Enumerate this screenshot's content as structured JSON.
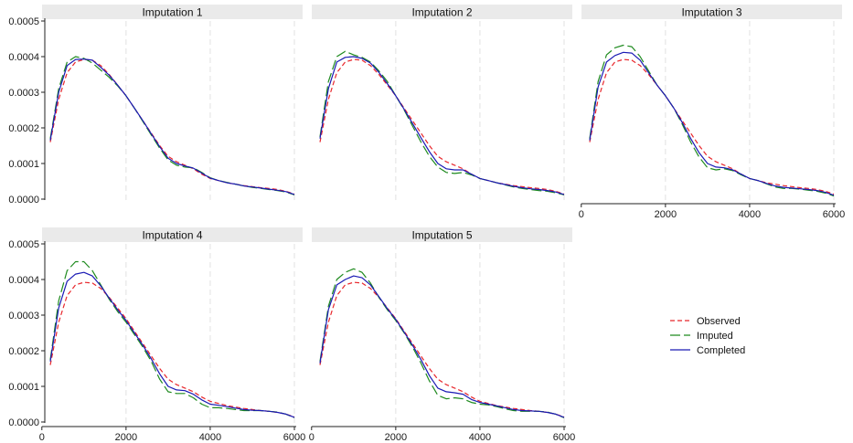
{
  "chart_data": {
    "type": "line",
    "xlim": [
      200,
      6000
    ],
    "ylim": [
      0,
      0.0005
    ],
    "x_ticks": [
      {
        "value": 0,
        "label": "0"
      },
      {
        "value": 2000,
        "label": "2000"
      },
      {
        "value": 4000,
        "label": "4000"
      },
      {
        "value": 6000,
        "label": "6000"
      }
    ],
    "y_ticks": [
      {
        "value": 0,
        "label": "0.0000"
      },
      {
        "value": 0.0001,
        "label": "0.0001"
      },
      {
        "value": 0.0002,
        "label": "0.0002"
      },
      {
        "value": 0.0003,
        "label": "0.0003"
      },
      {
        "value": 0.0004,
        "label": "0.0004"
      },
      {
        "value": 0.0005,
        "label": "0.0005"
      }
    ],
    "x": [
      200,
      400,
      600,
      800,
      1000,
      1200,
      1400,
      1600,
      1800,
      2000,
      2200,
      2400,
      2600,
      2800,
      3000,
      3200,
      3400,
      3600,
      3800,
      4000,
      4200,
      4400,
      4600,
      4800,
      5000,
      5200,
      5400,
      5600,
      5800,
      6000
    ],
    "grid": true,
    "legend_position": "right",
    "panels": [
      {
        "title": "Imputation 1",
        "series": [
          {
            "name": "Observed",
            "color": "#e8262b",
            "dash": "dashed",
            "values": [
              0.00016,
              0.00028,
              0.000355,
              0.000385,
              0.000392,
              0.00039,
              0.000375,
              0.00035,
              0.00032,
              0.00029,
              0.000255,
              0.00022,
              0.000185,
              0.00015,
              0.00012,
              0.000105,
              9.5e-05,
              8.5e-05,
              7e-05,
              5.8e-05,
              5.2e-05,
              4.6e-05,
              4.2e-05,
              3.8e-05,
              3.5e-05,
              3.2e-05,
              3e-05,
              2.7e-05,
              2.2e-05,
              1.4e-05
            ]
          },
          {
            "name": "Imputed",
            "color": "#1e8a1e",
            "dash": "long-dash",
            "values": [
              0.00017,
              0.00031,
              0.000385,
              0.0004,
              0.000395,
              0.000382,
              0.000362,
              0.000342,
              0.000318,
              0.00029,
              0.000255,
              0.000218,
              0.00018,
              0.000143,
              0.00011,
              9.5e-05,
              9e-05,
              8.8e-05,
              7.5e-05,
              6e-05,
              5.2e-05,
              4.7e-05,
              4.2e-05,
              3.7e-05,
              3.3e-05,
              3e-05,
              2.7e-05,
              2.4e-05,
              2e-05,
              1.2e-05
            ]
          },
          {
            "name": "Completed",
            "color": "#1a1ab4",
            "dash": "solid",
            "values": [
              0.000165,
              0.0003,
              0.000375,
              0.000392,
              0.000393,
              0.00039,
              0.00037,
              0.000348,
              0.00032,
              0.00029,
              0.000255,
              0.00022,
              0.000183,
              0.000147,
              0.000115,
              0.0001,
              9.3e-05,
              8.7e-05,
              7.3e-05,
              5.9e-05,
              5.2e-05,
              4.6e-05,
              4.2e-05,
              3.7e-05,
              3.4e-05,
              3.1e-05,
              2.8e-05,
              2.5e-05,
              2.1e-05,
              1.3e-05
            ]
          }
        ]
      },
      {
        "title": "Imputation 2",
        "series": [
          {
            "name": "Observed",
            "color": "#e8262b",
            "dash": "dashed",
            "values": [
              0.00016,
              0.00028,
              0.000355,
              0.000385,
              0.000392,
              0.00039,
              0.000375,
              0.00035,
              0.00032,
              0.00029,
              0.000255,
              0.00022,
              0.000185,
              0.00015,
              0.00012,
              0.000105,
              9.5e-05,
              8.5e-05,
              7e-05,
              5.8e-05,
              5.2e-05,
              4.6e-05,
              4.2e-05,
              3.8e-05,
              3.5e-05,
              3.2e-05,
              3e-05,
              2.7e-05,
              2.2e-05,
              1.4e-05
            ]
          },
          {
            "name": "Imputed",
            "color": "#1e8a1e",
            "dash": "long-dash",
            "values": [
              0.000175,
              0.00033,
              0.0004,
              0.000415,
              0.000405,
              0.000398,
              0.000385,
              0.00036,
              0.00033,
              0.00029,
              0.00025,
              0.000205,
              0.00016,
              0.00012,
              9e-05,
              7.5e-05,
              7.2e-05,
              7.5e-05,
              6.8e-05,
              5.8e-05,
              5.2e-05,
              4.6e-05,
              4e-05,
              3.4e-05,
              3e-05,
              2.7e-05,
              2.4e-05,
              2.2e-05,
              1.8e-05,
              1.2e-05
            ]
          },
          {
            "name": "Completed",
            "color": "#1a1ab4",
            "dash": "solid",
            "values": [
              0.00017,
              0.00031,
              0.000385,
              0.000398,
              0.0004,
              0.000395,
              0.000382,
              0.000356,
              0.000324,
              0.00029,
              0.000252,
              0.000212,
              0.000172,
              0.000133,
              0.0001,
              8.5e-05,
              8.2e-05,
              8.2e-05,
              7e-05,
              5.8e-05,
              5.2e-05,
              4.6e-05,
              4.1e-05,
              3.6e-05,
              3.2e-05,
              2.9e-05,
              2.7e-05,
              2.4e-05,
              2e-05,
              1.3e-05
            ]
          }
        ]
      },
      {
        "title": "Imputation 3",
        "series": [
          {
            "name": "Observed",
            "color": "#e8262b",
            "dash": "dashed",
            "values": [
              0.00016,
              0.00028,
              0.000355,
              0.000385,
              0.000392,
              0.00039,
              0.000375,
              0.00035,
              0.00032,
              0.00029,
              0.000255,
              0.00022,
              0.000185,
              0.00015,
              0.00012,
              0.000105,
              9.5e-05,
              8.5e-05,
              7e-05,
              5.8e-05,
              5.2e-05,
              4.6e-05,
              4.2e-05,
              3.8e-05,
              3.5e-05,
              3.2e-05,
              3e-05,
              2.7e-05,
              2.2e-05,
              1.4e-05
            ]
          },
          {
            "name": "Imputed",
            "color": "#1e8a1e",
            "dash": "long-dash",
            "values": [
              0.00017,
              0.00033,
              0.000405,
              0.000425,
              0.000432,
              0.000428,
              0.0004,
              0.00036,
              0.00032,
              0.00029,
              0.000255,
              0.00021,
              0.00016,
              0.000118,
              8.8e-05,
              8.2e-05,
              8.5e-05,
              8e-05,
              6.8e-05,
              5.8e-05,
              5.2e-05,
              4.3e-05,
              3.4e-05,
              3e-05,
              3e-05,
              2.8e-05,
              2.5e-05,
              2.2e-05,
              1.7e-05,
              9e-06
            ]
          },
          {
            "name": "Completed",
            "color": "#1a1ab4",
            "dash": "solid",
            "values": [
              0.000165,
              0.000315,
              0.000385,
              0.000403,
              0.000412,
              0.00041,
              0.00039,
              0.000355,
              0.00032,
              0.00029,
              0.000255,
              0.000215,
              0.00017,
              0.00013,
              0.0001,
              9e-05,
              8.8e-05,
              8.2e-05,
              7e-05,
              5.8e-05,
              5.2e-05,
              4.4e-05,
              3.7e-05,
              3.3e-05,
              3.1e-05,
              2.9e-05,
              2.7e-05,
              2.4e-05,
              1.9e-05,
              1.1e-05
            ]
          }
        ]
      },
      {
        "title": "Imputation 4",
        "series": [
          {
            "name": "Observed",
            "color": "#e8262b",
            "dash": "dashed",
            "values": [
              0.00016,
              0.00028,
              0.000355,
              0.000385,
              0.000392,
              0.00039,
              0.000375,
              0.00035,
              0.00032,
              0.00029,
              0.000255,
              0.00022,
              0.000185,
              0.00015,
              0.00012,
              0.000105,
              9.5e-05,
              8.5e-05,
              7e-05,
              5.8e-05,
              5.2e-05,
              4.6e-05,
              4.2e-05,
              3.8e-05,
              3.5e-05,
              3.2e-05,
              3e-05,
              2.7e-05,
              2.2e-05,
              1.4e-05
            ]
          },
          {
            "name": "Imputed",
            "color": "#1e8a1e",
            "dash": "long-dash",
            "values": [
              0.000175,
              0.00034,
              0.000425,
              0.00045,
              0.00045,
              0.000425,
              0.000385,
              0.000345,
              0.00031,
              0.00028,
              0.000245,
              0.00021,
              0.00017,
              0.00012,
              8.5e-05,
              8e-05,
              8e-05,
              6.8e-05,
              5e-05,
              4e-05,
              4e-05,
              3.8e-05,
              3.5e-05,
              3.2e-05,
              3.2e-05,
              3.2e-05,
              3e-05,
              2.8e-05,
              2.2e-05,
              1.2e-05
            ]
          },
          {
            "name": "Completed",
            "color": "#1a1ab4",
            "dash": "solid",
            "values": [
              0.00017,
              0.00032,
              0.000395,
              0.000415,
              0.00042,
              0.00041,
              0.000382,
              0.000348,
              0.000315,
              0.000285,
              0.00025,
              0.000215,
              0.000177,
              0.000135,
              0.0001,
              9e-05,
              8.8e-05,
              7.8e-05,
              6.2e-05,
              5e-05,
              4.7e-05,
              4.3e-05,
              3.9e-05,
              3.5e-05,
              3.3e-05,
              3.2e-05,
              3e-05,
              2.7e-05,
              2.2e-05,
              1.3e-05
            ]
          }
        ]
      },
      {
        "title": "Imputation 5",
        "series": [
          {
            "name": "Observed",
            "color": "#e8262b",
            "dash": "dashed",
            "values": [
              0.00016,
              0.00028,
              0.000355,
              0.000385,
              0.000392,
              0.00039,
              0.000375,
              0.00035,
              0.00032,
              0.00029,
              0.000255,
              0.00022,
              0.000185,
              0.00015,
              0.00012,
              0.000105,
              9.5e-05,
              8.5e-05,
              7e-05,
              5.8e-05,
              5.2e-05,
              4.6e-05,
              4.2e-05,
              3.8e-05,
              3.5e-05,
              3.2e-05,
              3e-05,
              2.7e-05,
              2.2e-05,
              1.4e-05
            ]
          },
          {
            "name": "Imputed",
            "color": "#1e8a1e",
            "dash": "long-dash",
            "values": [
              0.00017,
              0.000325,
              0.0004,
              0.00042,
              0.00043,
              0.00042,
              0.00039,
              0.00035,
              0.000315,
              0.000285,
              0.00025,
              0.00021,
              0.000165,
              0.000115,
              7.5e-05,
              6.5e-05,
              6.8e-05,
              6.5e-05,
              5.5e-05,
              5e-05,
              4.8e-05,
              4.3e-05,
              3.7e-05,
              3.2e-05,
              3e-05,
              3e-05,
              3e-05,
              2.8e-05,
              2.2e-05,
              1.2e-05
            ]
          },
          {
            "name": "Completed",
            "color": "#1a1ab4",
            "dash": "solid",
            "values": [
              0.000165,
              0.000315,
              0.000385,
              0.0004,
              0.00041,
              0.000405,
              0.000385,
              0.000352,
              0.000318,
              0.000288,
              0.000252,
              0.000215,
              0.000175,
              0.00013,
              9.5e-05,
              8.5e-05,
              8.2e-05,
              7.8e-05,
              6.3e-05,
              5.5e-05,
              5e-05,
              4.5e-05,
              4e-05,
              3.5e-05,
              3.2e-05,
              3.1e-05,
              3e-05,
              2.7e-05,
              2.2e-05,
              1.3e-05
            ]
          }
        ]
      }
    ],
    "legend": [
      {
        "label": "Observed",
        "color": "#e8262b",
        "dash": "dashed"
      },
      {
        "label": "Imputed",
        "color": "#1e8a1e",
        "dash": "long-dash"
      },
      {
        "label": "Completed",
        "color": "#1a1ab4",
        "dash": "solid"
      }
    ]
  }
}
